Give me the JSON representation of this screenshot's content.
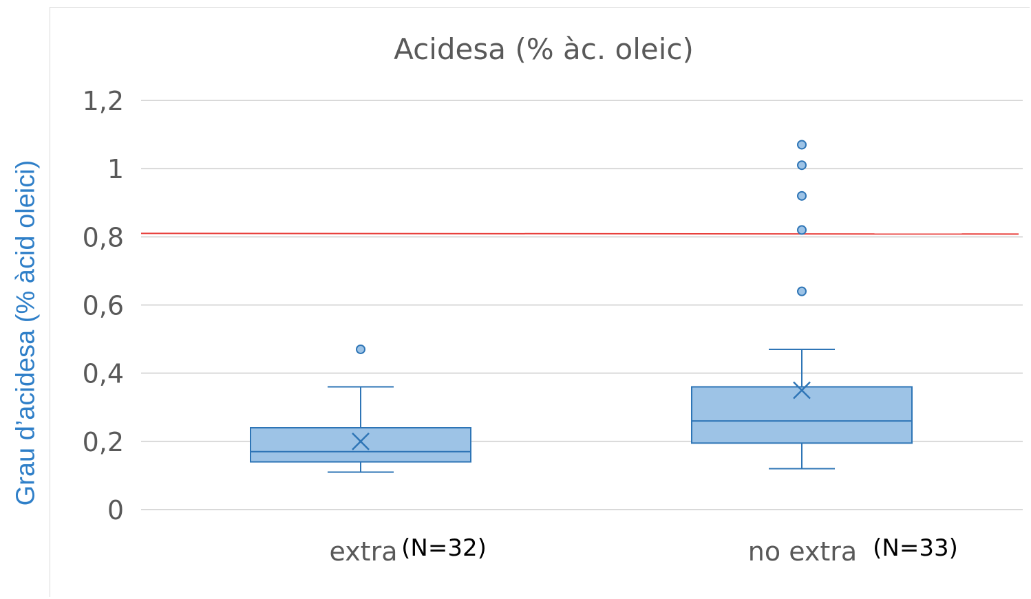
{
  "chart_data": {
    "type": "box",
    "title": "Acidesa (% àc. oleic)",
    "ylabel": "Grau d’acidesa (% àcid oleici)",
    "xlabel": "",
    "ylim": [
      0,
      1.2
    ],
    "yticks": [
      {
        "value": 0,
        "label": "0"
      },
      {
        "value": 0.2,
        "label": "0,2"
      },
      {
        "value": 0.4,
        "label": "0,4"
      },
      {
        "value": 0.6,
        "label": "0,6"
      },
      {
        "value": 0.8,
        "label": "0,8"
      },
      {
        "value": 1.0,
        "label": "1"
      },
      {
        "value": 1.2,
        "label": "1,2"
      }
    ],
    "grid": true,
    "reference_line": {
      "value": 0.81,
      "color": "#e8403c"
    },
    "categories": [
      "extra",
      "no extra"
    ],
    "annotations": [
      "(N=32)",
      "(N=33)"
    ],
    "boxes": [
      {
        "category": "extra",
        "whisker_low": 0.11,
        "q1": 0.14,
        "median": 0.17,
        "q3": 0.24,
        "whisker_high": 0.36,
        "mean": 0.2,
        "outliers": [
          0.47
        ]
      },
      {
        "category": "no extra",
        "whisker_low": 0.12,
        "q1": 0.195,
        "median": 0.26,
        "q3": 0.36,
        "whisker_high": 0.47,
        "mean": 0.35,
        "outliers": [
          0.64,
          0.82,
          0.92,
          1.01,
          1.07
        ]
      }
    ],
    "colors": {
      "box_fill": "#9dc3e6",
      "box_stroke": "#2e75b6",
      "grid": "#d9d9d9",
      "text": "#595959",
      "ylabel": "#2f7fc8"
    }
  }
}
